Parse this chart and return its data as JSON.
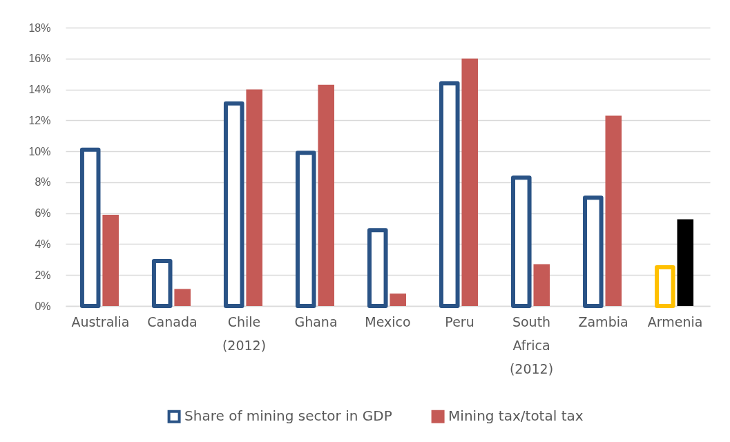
{
  "chart_data": {
    "type": "bar",
    "categories": [
      "Australia",
      "Canada",
      "Chile (2012)",
      "Ghana",
      "Mexico",
      "Peru",
      "South Africa (2012)",
      "Zambia",
      "Armenia"
    ],
    "series": [
      {
        "name": "Share of mining sector in GDP",
        "color": "#2a5386",
        "colors": [
          "#2a5386",
          "#2a5386",
          "#2a5386",
          "#2a5386",
          "#2a5386",
          "#2a5386",
          "#2a5386",
          "#2a5386",
          "#ffc000"
        ],
        "values": [
          10.1,
          2.9,
          13.1,
          9.9,
          4.9,
          14.4,
          8.3,
          7.0,
          2.5
        ]
      },
      {
        "name": "Mining tax/total tax",
        "color": "#c55a56",
        "colors": [
          "#c55a56",
          "#c55a56",
          "#c55a56",
          "#c55a56",
          "#c55a56",
          "#c55a56",
          "#c55a56",
          "#c55a56",
          "#000000"
        ],
        "values": [
          5.9,
          1.1,
          14.0,
          14.3,
          0.8,
          16.0,
          2.7,
          12.3,
          5.6
        ]
      }
    ],
    "ylim": [
      0,
      18
    ],
    "yticks": [
      {
        "value": 0,
        "label": "0%"
      },
      {
        "value": 2,
        "label": "2%"
      },
      {
        "value": 4,
        "label": "4%"
      },
      {
        "value": 6,
        "label": "6%"
      },
      {
        "value": 8,
        "label": "8%"
      },
      {
        "value": 10,
        "label": "10%"
      },
      {
        "value": 12,
        "label": "12%"
      },
      {
        "value": 14,
        "label": "14%"
      },
      {
        "value": 16,
        "label": "16%"
      },
      {
        "value": 18,
        "label": "18%"
      }
    ],
    "grid": "y",
    "legend": "bottom"
  }
}
